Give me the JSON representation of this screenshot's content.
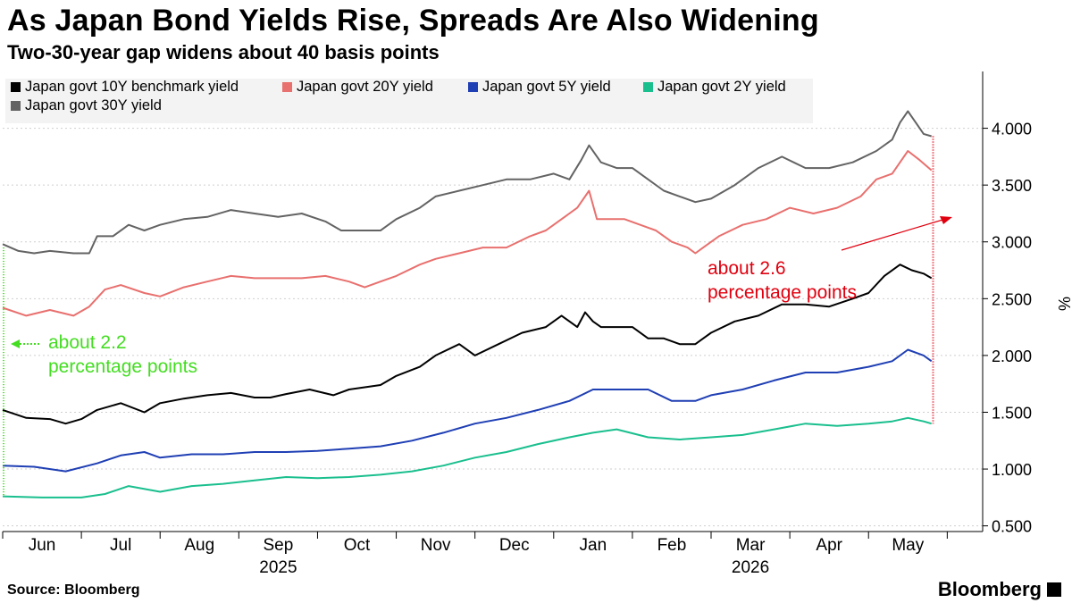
{
  "title": "As Japan Bond Yields Rise, Spreads Are Also Widening",
  "subtitle": "Two-30-year gap widens about 40 basis points",
  "source": "Source: Bloomberg",
  "brand": "Bloomberg",
  "chart_data": {
    "type": "line",
    "ylabel": "%",
    "ylim": [
      0.45,
      4.5
    ],
    "yticks": [
      "0.500",
      "1.000",
      "1.500",
      "2.000",
      "2.500",
      "3.000",
      "3.500",
      "4.000"
    ],
    "ytick_values": [
      0.5,
      1.0,
      1.5,
      2.0,
      2.5,
      3.0,
      3.5,
      4.0
    ],
    "xlim": [
      0,
      12.45
    ],
    "month_labels": [
      "Jun",
      "Jul",
      "Aug",
      "Sep",
      "Oct",
      "Nov",
      "Dec",
      "Jan",
      "Feb",
      "Mar",
      "Apr",
      "May"
    ],
    "month_positions": [
      0.5,
      1.5,
      2.5,
      3.5,
      4.5,
      5.5,
      6.5,
      7.5,
      8.5,
      9.5,
      10.5,
      11.5
    ],
    "year_labels": [
      "2025",
      "2026"
    ],
    "year_positions": [
      3.5,
      9.5
    ],
    "grid": "horizontal-dashed",
    "legend_position": "top-left",
    "colors": {
      "y30": "#636363",
      "y20": "#e8706e",
      "y10": "#000000",
      "y5": "#1f3fb4",
      "y2": "#1abf8e",
      "annotation_red": "#e0000f",
      "annotation_green": "#44dd22"
    },
    "series": [
      {
        "key": "y10",
        "name": "Japan govt 10Y benchmark yield",
        "color": "#000000",
        "x": [
          0,
          0.3,
          0.6,
          0.8,
          1.0,
          1.2,
          1.5,
          1.8,
          2.0,
          2.3,
          2.6,
          2.9,
          3.2,
          3.4,
          3.6,
          3.9,
          4.2,
          4.4,
          4.6,
          4.8,
          5.0,
          5.3,
          5.5,
          5.8,
          6.0,
          6.3,
          6.6,
          6.9,
          7.1,
          7.3,
          7.4,
          7.5,
          7.6,
          7.8,
          8.0,
          8.2,
          8.4,
          8.6,
          8.8,
          8.9,
          9.0,
          9.3,
          9.6,
          9.9,
          10.2,
          10.5,
          10.8,
          11.0,
          11.2,
          11.4,
          11.55,
          11.7,
          11.8
        ],
        "y": [
          1.52,
          1.45,
          1.44,
          1.4,
          1.44,
          1.52,
          1.58,
          1.5,
          1.58,
          1.62,
          1.65,
          1.67,
          1.63,
          1.63,
          1.66,
          1.7,
          1.65,
          1.7,
          1.72,
          1.74,
          1.82,
          1.9,
          2.0,
          2.1,
          2.0,
          2.1,
          2.2,
          2.25,
          2.35,
          2.25,
          2.38,
          2.3,
          2.25,
          2.25,
          2.25,
          2.15,
          2.15,
          2.1,
          2.1,
          2.15,
          2.2,
          2.3,
          2.35,
          2.45,
          2.45,
          2.43,
          2.5,
          2.55,
          2.7,
          2.8,
          2.75,
          2.72,
          2.68
        ]
      },
      {
        "key": "y20",
        "name": "Japan govt 20Y yield",
        "color": "#e8706e",
        "x": [
          0,
          0.3,
          0.6,
          0.9,
          1.1,
          1.3,
          1.5,
          1.8,
          2.0,
          2.3,
          2.6,
          2.9,
          3.2,
          3.5,
          3.8,
          4.1,
          4.4,
          4.6,
          4.8,
          5.0,
          5.3,
          5.5,
          5.8,
          6.1,
          6.4,
          6.7,
          6.9,
          7.1,
          7.3,
          7.45,
          7.55,
          7.7,
          7.9,
          8.1,
          8.3,
          8.5,
          8.7,
          8.8,
          8.9,
          9.1,
          9.4,
          9.7,
          10.0,
          10.3,
          10.6,
          10.9,
          11.1,
          11.3,
          11.4,
          11.5,
          11.65,
          11.8
        ],
        "y": [
          2.42,
          2.35,
          2.4,
          2.35,
          2.43,
          2.58,
          2.62,
          2.55,
          2.52,
          2.6,
          2.65,
          2.7,
          2.68,
          2.68,
          2.68,
          2.7,
          2.65,
          2.6,
          2.65,
          2.7,
          2.8,
          2.85,
          2.9,
          2.95,
          2.95,
          3.05,
          3.1,
          3.2,
          3.3,
          3.45,
          3.2,
          3.2,
          3.2,
          3.15,
          3.1,
          3.0,
          2.95,
          2.9,
          2.95,
          3.05,
          3.15,
          3.2,
          3.3,
          3.25,
          3.3,
          3.4,
          3.55,
          3.6,
          3.7,
          3.8,
          3.72,
          3.63
        ]
      },
      {
        "key": "y5",
        "name": "Japan govt 5Y yield",
        "color": "#1f3fb4",
        "x": [
          0,
          0.4,
          0.8,
          1.2,
          1.5,
          1.8,
          2.0,
          2.4,
          2.8,
          3.2,
          3.6,
          4.0,
          4.4,
          4.8,
          5.2,
          5.6,
          6.0,
          6.4,
          6.8,
          7.2,
          7.5,
          7.8,
          8.2,
          8.5,
          8.8,
          9.0,
          9.4,
          9.8,
          10.2,
          10.6,
          11.0,
          11.3,
          11.5,
          11.7,
          11.8
        ],
        "y": [
          1.03,
          1.02,
          0.98,
          1.05,
          1.12,
          1.15,
          1.1,
          1.13,
          1.13,
          1.15,
          1.15,
          1.16,
          1.18,
          1.2,
          1.25,
          1.32,
          1.4,
          1.45,
          1.52,
          1.6,
          1.7,
          1.7,
          1.7,
          1.6,
          1.6,
          1.65,
          1.7,
          1.78,
          1.85,
          1.85,
          1.9,
          1.95,
          2.05,
          2.0,
          1.95
        ]
      },
      {
        "key": "y2",
        "name": "Japan govt 2Y yield",
        "color": "#1abf8e",
        "x": [
          0,
          0.5,
          1.0,
          1.3,
          1.6,
          2.0,
          2.4,
          2.8,
          3.2,
          3.6,
          4.0,
          4.4,
          4.8,
          5.2,
          5.6,
          6.0,
          6.4,
          6.8,
          7.2,
          7.5,
          7.8,
          8.2,
          8.6,
          9.0,
          9.4,
          9.8,
          10.2,
          10.6,
          11.0,
          11.3,
          11.5,
          11.7,
          11.8
        ],
        "y": [
          0.76,
          0.75,
          0.75,
          0.78,
          0.85,
          0.8,
          0.85,
          0.87,
          0.9,
          0.93,
          0.92,
          0.93,
          0.95,
          0.98,
          1.03,
          1.1,
          1.15,
          1.22,
          1.28,
          1.32,
          1.35,
          1.28,
          1.26,
          1.28,
          1.3,
          1.35,
          1.4,
          1.38,
          1.4,
          1.42,
          1.45,
          1.42,
          1.4
        ]
      },
      {
        "key": "y30",
        "name": "Japan govt 30Y yield",
        "color": "#636363",
        "x": [
          0,
          0.2,
          0.4,
          0.6,
          0.9,
          1.1,
          1.2,
          1.4,
          1.6,
          1.8,
          2.0,
          2.3,
          2.6,
          2.9,
          3.2,
          3.5,
          3.8,
          4.1,
          4.3,
          4.5,
          4.8,
          5.0,
          5.3,
          5.5,
          5.8,
          6.1,
          6.4,
          6.7,
          7.0,
          7.2,
          7.35,
          7.45,
          7.6,
          7.8,
          8.0,
          8.2,
          8.4,
          8.6,
          8.8,
          9.0,
          9.3,
          9.6,
          9.9,
          10.2,
          10.5,
          10.8,
          11.1,
          11.3,
          11.4,
          11.5,
          11.6,
          11.7,
          11.8
        ],
        "y": [
          2.98,
          2.92,
          2.9,
          2.92,
          2.9,
          2.9,
          3.05,
          3.05,
          3.15,
          3.1,
          3.15,
          3.2,
          3.22,
          3.28,
          3.25,
          3.22,
          3.25,
          3.18,
          3.1,
          3.1,
          3.1,
          3.2,
          3.3,
          3.4,
          3.45,
          3.5,
          3.55,
          3.55,
          3.6,
          3.55,
          3.72,
          3.85,
          3.7,
          3.65,
          3.65,
          3.55,
          3.45,
          3.4,
          3.35,
          3.38,
          3.5,
          3.65,
          3.75,
          3.65,
          3.65,
          3.7,
          3.8,
          3.9,
          4.05,
          4.15,
          4.05,
          3.95,
          3.93
        ]
      }
    ],
    "annotations": [
      {
        "id": "red",
        "text_lines": [
          "about 2.6",
          "percentage points"
        ],
        "color": "#e0000f",
        "x": 11.82,
        "y_top": 3.93,
        "y_bottom": 1.4
      },
      {
        "id": "green",
        "text_lines": [
          "about 2.2",
          "percentage points"
        ],
        "color": "#44dd22",
        "x": 0.0,
        "y_top": 2.95,
        "y_bottom": 0.76
      }
    ]
  }
}
